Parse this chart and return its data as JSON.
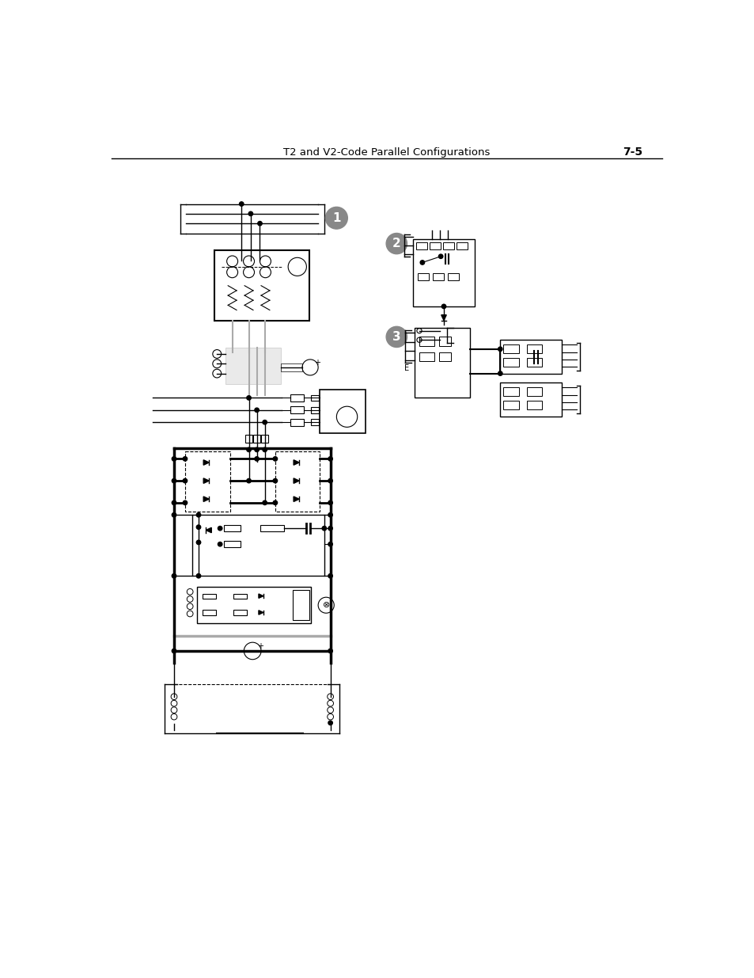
{
  "title": "T2 and V2-Code Parallel Configurations",
  "page_num": "7-5",
  "bg_color": "#ffffff",
  "line_color": "#000000",
  "gray_color": "#888888",
  "light_gray": "#aaaaaa"
}
